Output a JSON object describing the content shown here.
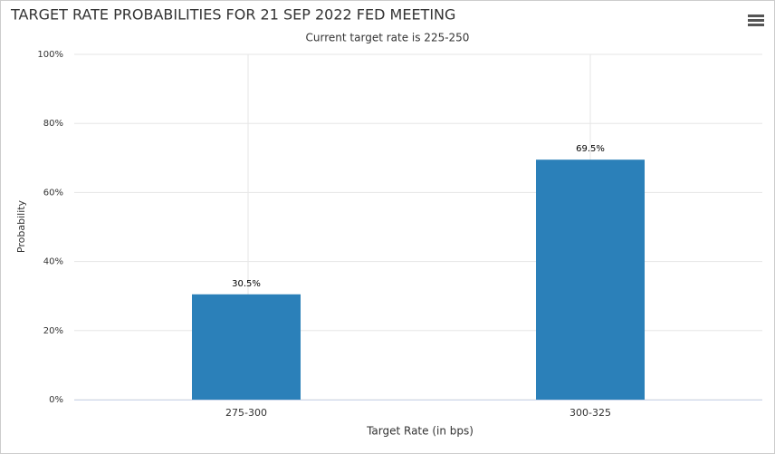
{
  "chart_data": {
    "type": "bar",
    "title": "TARGET RATE PROBABILITIES FOR 21 SEP 2022 FED MEETING",
    "subtitle": "Current target rate is 225-250",
    "x_label": "Target Rate (in bps)",
    "y_label": "Probability",
    "categories": [
      "275-300",
      "300-325"
    ],
    "values": [
      30.5,
      69.5
    ],
    "value_labels": [
      "30.5%",
      "69.5%"
    ],
    "color": "#2b80b9",
    "ylim": [
      0,
      100
    ],
    "yticks": [
      {
        "value": 0,
        "label": "0%"
      },
      {
        "value": 20,
        "label": "20%"
      },
      {
        "value": 40,
        "label": "40%"
      },
      {
        "value": 60,
        "label": "60%"
      },
      {
        "value": 80,
        "label": "80%"
      },
      {
        "value": 100,
        "label": "100%"
      }
    ],
    "grid": true
  }
}
